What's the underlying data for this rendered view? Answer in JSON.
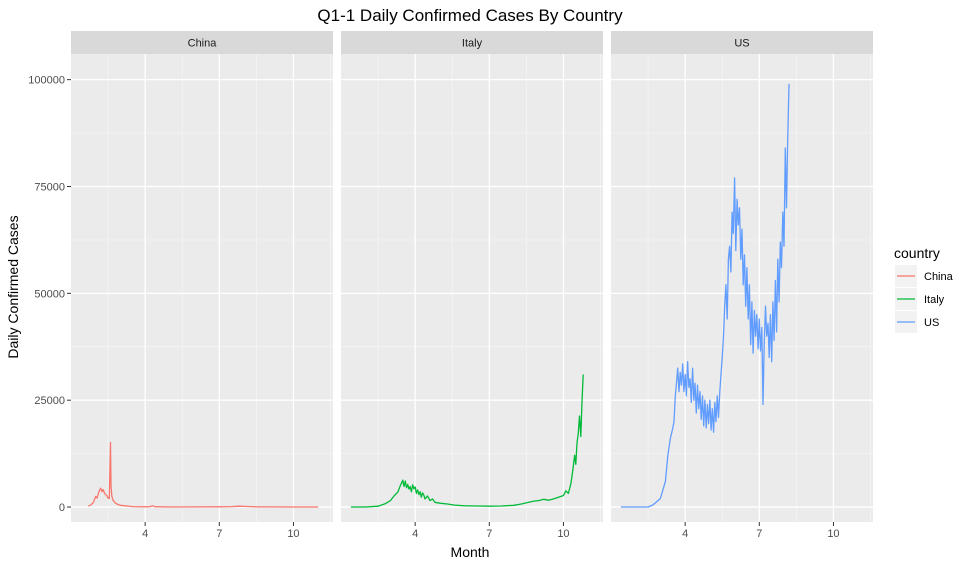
{
  "chart_data": {
    "type": "line",
    "title": "Q1-1 Daily Confirmed Cases By Country",
    "xlabel": "Month",
    "ylabel": "Daily Confirmed Cases",
    "xlim": [
      1.0,
      11.6
    ],
    "ylim": [
      -3500,
      106000
    ],
    "x_ticks": [
      4,
      7,
      10
    ],
    "x_tick_labels": [
      "4",
      "7",
      "10"
    ],
    "y_ticks": [
      0,
      25000,
      50000,
      75000,
      100000
    ],
    "y_tick_labels": [
      "0",
      "25000",
      "50000",
      "75000",
      "100000"
    ],
    "grid": true,
    "facet_by": "country",
    "legend": {
      "title": "country",
      "position": "right"
    },
    "series": [
      {
        "name": "China",
        "color": "#F8766D",
        "points": [
          [
            1.7,
            200
          ],
          [
            1.8,
            500
          ],
          [
            1.9,
            1000
          ],
          [
            2.0,
            2500
          ],
          [
            2.05,
            2100
          ],
          [
            2.1,
            3000
          ],
          [
            2.15,
            3900
          ],
          [
            2.2,
            4400
          ],
          [
            2.25,
            3600
          ],
          [
            2.3,
            4100
          ],
          [
            2.35,
            3300
          ],
          [
            2.4,
            2900
          ],
          [
            2.45,
            2700
          ],
          [
            2.5,
            2100
          ],
          [
            2.55,
            2000
          ],
          [
            2.6,
            15100
          ],
          [
            2.62,
            5000
          ],
          [
            2.65,
            2600
          ],
          [
            2.7,
            1600
          ],
          [
            2.8,
            900
          ],
          [
            2.9,
            600
          ],
          [
            3.0,
            400
          ],
          [
            3.2,
            300
          ],
          [
            3.5,
            100
          ],
          [
            4.0,
            50
          ],
          [
            4.2,
            100
          ],
          [
            4.3,
            300
          ],
          [
            4.4,
            80
          ],
          [
            5.0,
            20
          ],
          [
            6.0,
            30
          ],
          [
            7.0,
            50
          ],
          [
            7.5,
            100
          ],
          [
            7.8,
            200
          ],
          [
            8.0,
            150
          ],
          [
            8.5,
            50
          ],
          [
            9.0,
            30
          ],
          [
            10.0,
            20
          ],
          [
            11.0,
            20
          ]
        ]
      },
      {
        "name": "Italy",
        "color": "#00BA38",
        "points": [
          [
            1.4,
            0
          ],
          [
            2.0,
            0
          ],
          [
            2.5,
            200
          ],
          [
            2.8,
            800
          ],
          [
            3.0,
            1500
          ],
          [
            3.15,
            2600
          ],
          [
            3.3,
            3500
          ],
          [
            3.4,
            5000
          ],
          [
            3.5,
            6300
          ],
          [
            3.55,
            4800
          ],
          [
            3.6,
            6100
          ],
          [
            3.65,
            4500
          ],
          [
            3.7,
            5300
          ],
          [
            3.75,
            4200
          ],
          [
            3.8,
            4800
          ],
          [
            3.85,
            3600
          ],
          [
            3.9,
            5200
          ],
          [
            3.95,
            4300
          ],
          [
            4.0,
            4700
          ],
          [
            4.05,
            3200
          ],
          [
            4.1,
            4000
          ],
          [
            4.15,
            2900
          ],
          [
            4.2,
            3600
          ],
          [
            4.25,
            2300
          ],
          [
            4.3,
            3300
          ],
          [
            4.35,
            2800
          ],
          [
            4.4,
            1900
          ],
          [
            4.5,
            2600
          ],
          [
            4.6,
            1500
          ],
          [
            4.7,
            1900
          ],
          [
            4.8,
            1100
          ],
          [
            5.0,
            900
          ],
          [
            5.3,
            700
          ],
          [
            5.6,
            450
          ],
          [
            6.0,
            300
          ],
          [
            6.5,
            250
          ],
          [
            7.0,
            200
          ],
          [
            7.5,
            250
          ],
          [
            8.0,
            400
          ],
          [
            8.3,
            700
          ],
          [
            8.6,
            1100
          ],
          [
            8.8,
            1400
          ],
          [
            9.0,
            1500
          ],
          [
            9.2,
            1800
          ],
          [
            9.4,
            1600
          ],
          [
            9.6,
            1900
          ],
          [
            9.8,
            2300
          ],
          [
            10.0,
            2700
          ],
          [
            10.1,
            3800
          ],
          [
            10.2,
            3200
          ],
          [
            10.3,
            5500
          ],
          [
            10.35,
            7400
          ],
          [
            10.4,
            9500
          ],
          [
            10.45,
            12100
          ],
          [
            10.5,
            10000
          ],
          [
            10.55,
            15000
          ],
          [
            10.6,
            17300
          ],
          [
            10.65,
            21300
          ],
          [
            10.7,
            16500
          ],
          [
            10.75,
            24600
          ],
          [
            10.8,
            31000
          ]
        ]
      },
      {
        "name": "US",
        "color": "#619CFF",
        "points": [
          [
            1.4,
            0
          ],
          [
            2.5,
            0
          ],
          [
            2.7,
            500
          ],
          [
            3.0,
            2000
          ],
          [
            3.2,
            6000
          ],
          [
            3.3,
            12000
          ],
          [
            3.4,
            16000
          ],
          [
            3.5,
            18500
          ],
          [
            3.55,
            20000
          ],
          [
            3.6,
            26000
          ],
          [
            3.65,
            29000
          ],
          [
            3.7,
            32500
          ],
          [
            3.75,
            27000
          ],
          [
            3.8,
            31500
          ],
          [
            3.85,
            28500
          ],
          [
            3.9,
            33500
          ],
          [
            3.95,
            27000
          ],
          [
            4.0,
            31000
          ],
          [
            4.05,
            26000
          ],
          [
            4.1,
            34000
          ],
          [
            4.15,
            28000
          ],
          [
            4.2,
            30000
          ],
          [
            4.25,
            24500
          ],
          [
            4.3,
            32500
          ],
          [
            4.35,
            25000
          ],
          [
            4.4,
            29000
          ],
          [
            4.45,
            22000
          ],
          [
            4.5,
            28500
          ],
          [
            4.55,
            23000
          ],
          [
            4.6,
            27000
          ],
          [
            4.65,
            20500
          ],
          [
            4.7,
            26000
          ],
          [
            4.75,
            19000
          ],
          [
            4.8,
            25000
          ],
          [
            4.85,
            18500
          ],
          [
            4.9,
            24000
          ],
          [
            4.95,
            19500
          ],
          [
            5.0,
            25000
          ],
          [
            5.05,
            18000
          ],
          [
            5.1,
            23000
          ],
          [
            5.15,
            17500
          ],
          [
            5.2,
            24500
          ],
          [
            5.25,
            20000
          ],
          [
            5.3,
            26000
          ],
          [
            5.35,
            21000
          ],
          [
            5.4,
            27000
          ],
          [
            5.5,
            35000
          ],
          [
            5.55,
            40000
          ],
          [
            5.6,
            47000
          ],
          [
            5.65,
            52000
          ],
          [
            5.7,
            44000
          ],
          [
            5.75,
            58000
          ],
          [
            5.8,
            61000
          ],
          [
            5.85,
            55000
          ],
          [
            5.9,
            69000
          ],
          [
            5.95,
            64000
          ],
          [
            6.0,
            77000
          ],
          [
            6.05,
            60000
          ],
          [
            6.1,
            72000
          ],
          [
            6.15,
            66000
          ],
          [
            6.2,
            70000
          ],
          [
            6.25,
            58000
          ],
          [
            6.3,
            65000
          ],
          [
            6.35,
            52000
          ],
          [
            6.4,
            59000
          ],
          [
            6.45,
            47000
          ],
          [
            6.5,
            56000
          ],
          [
            6.55,
            44000
          ],
          [
            6.6,
            52000
          ],
          [
            6.65,
            38000
          ],
          [
            6.7,
            48000
          ],
          [
            6.75,
            36000
          ],
          [
            6.8,
            46000
          ],
          [
            6.85,
            40000
          ],
          [
            6.9,
            45000
          ],
          [
            6.95,
            37000
          ],
          [
            7.0,
            44000
          ],
          [
            7.05,
            36500
          ],
          [
            7.1,
            42000
          ],
          [
            7.15,
            24000
          ],
          [
            7.2,
            38000
          ],
          [
            7.25,
            47000
          ],
          [
            7.3,
            40000
          ],
          [
            7.35,
            43000
          ],
          [
            7.4,
            35000
          ],
          [
            7.45,
            45000
          ],
          [
            7.5,
            34000
          ],
          [
            7.55,
            48000
          ],
          [
            7.6,
            39000
          ],
          [
            7.65,
            53000
          ],
          [
            7.7,
            41000
          ],
          [
            7.75,
            58000
          ],
          [
            7.8,
            48000
          ],
          [
            7.85,
            62000
          ],
          [
            7.9,
            56000
          ],
          [
            7.95,
            69000
          ],
          [
            8.0,
            61000
          ],
          [
            8.05,
            84000
          ],
          [
            8.1,
            70000
          ],
          [
            8.15,
            86000
          ],
          [
            8.2,
            99000
          ]
        ]
      }
    ],
    "facets": [
      {
        "label": "China",
        "series": "China",
        "x_start": 1.7
      },
      {
        "label": "Italy",
        "series": "Italy",
        "x_start": 1.4
      },
      {
        "label": "US",
        "series": "US",
        "x_start": 1.4
      }
    ]
  }
}
